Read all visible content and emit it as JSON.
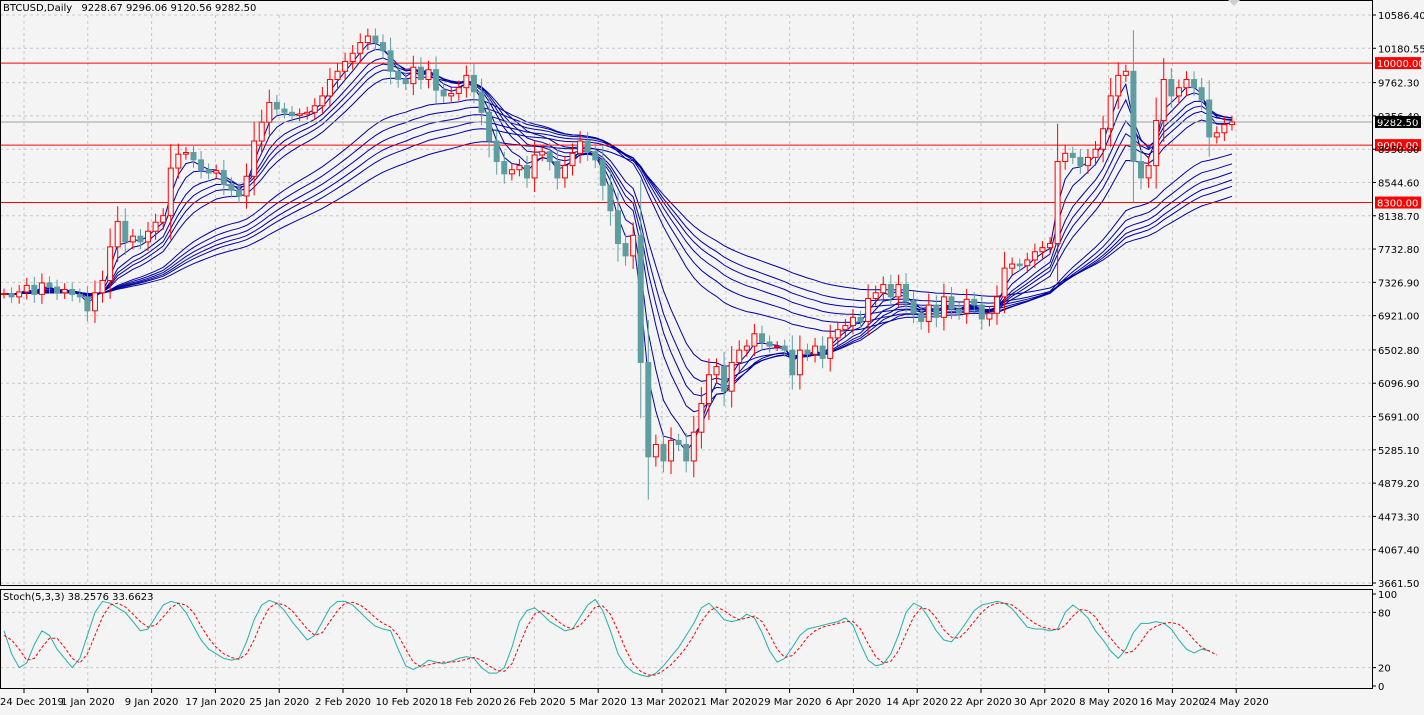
{
  "header": {
    "symbol": "BTCUSD,Daily",
    "ohlc": "9228.67 9296.06 9120.56 9282.50"
  },
  "indicator": {
    "label": "Stoch(5,3,3) 38.2576 33.6623"
  },
  "chart_data": [
    {
      "type": "candlestick",
      "title": "BTCUSD,Daily",
      "ylim": [
        3661.5,
        10586.4
      ],
      "y_ticks": [
        "10586.40",
        "10180.55",
        "9762.30",
        "9356.40",
        "8950.00",
        "8544.60",
        "8138.70",
        "7732.80",
        "7326.90",
        "6921.00",
        "6502.80",
        "6096.90",
        "5691.00",
        "5285.10",
        "4879.20",
        "4473.30",
        "4067.40",
        "3661.50"
      ],
      "x_ticks": [
        "24 Dec 2019",
        "1 Jan 2020",
        "9 Jan 2020",
        "17 Jan 2020",
        "25 Jan 2020",
        "2 Feb 2020",
        "10 Feb 2020",
        "18 Feb 2020",
        "26 Feb 2020",
        "5 Mar 2020",
        "13 Mar 2020",
        "21 Mar 2020",
        "29 Mar 2020",
        "6 Apr 2020",
        "14 Apr 2020",
        "22 Apr 2020",
        "30 Apr 2020",
        "8 May 2020",
        "16 May 2020",
        "24 May 2020"
      ],
      "horizontal_levels": [
        {
          "value": 10000.0,
          "label": "10000.00",
          "color": "#ff0000"
        },
        {
          "value": 9000.0,
          "label": "9000.00",
          "color": "#ff0000"
        },
        {
          "value": 8300.0,
          "label": "8300.00",
          "color": "#ff0000"
        }
      ],
      "current_price": {
        "value": 9282.5,
        "label": "9282.50"
      },
      "colors": {
        "bull": "#ff0000",
        "bear": "#5f9ea0",
        "ma": "#0000a0",
        "grid": "#c8c8c8"
      },
      "closes": [
        7190,
        7150,
        7210,
        7290,
        7180,
        7320,
        7270,
        7200,
        7240,
        7180,
        7150,
        6980,
        7200,
        7350,
        7760,
        8070,
        7820,
        7890,
        7820,
        7950,
        8060,
        8140,
        8720,
        8890,
        8910,
        8820,
        8700,
        8660,
        8690,
        8520,
        8450,
        8380,
        8620,
        9050,
        9280,
        9520,
        9440,
        9400,
        9360,
        9380,
        9400,
        9480,
        9600,
        9800,
        9900,
        10020,
        10120,
        10250,
        10330,
        10250,
        10150,
        9900,
        9800,
        9750,
        9950,
        9800,
        9920,
        9670,
        9600,
        9630,
        9700,
        9850,
        9650,
        9400,
        9050,
        8800,
        8650,
        8700,
        8750,
        8600,
        8880,
        8920,
        8800,
        8600,
        8750,
        8900,
        9050,
        8920,
        8820,
        8510,
        8200,
        7800,
        7650,
        7900,
        6350,
        5200,
        5350,
        5150,
        5400,
        5350,
        5150,
        5500,
        5850,
        6200,
        6300,
        6000,
        6350,
        6500,
        6550,
        6700,
        6600,
        6550,
        6550,
        6500,
        6200,
        6500,
        6450,
        6550,
        6400,
        6650,
        6750,
        6800,
        6900,
        6850,
        7130,
        7200,
        7300,
        7150,
        7300,
        7100,
        6950,
        6850,
        7050,
        6900,
        7150,
        7000,
        6950,
        7120,
        7050,
        6880,
        6950,
        7150,
        7500,
        7550,
        7530,
        7600,
        7700,
        7750,
        7800,
        8800,
        8900,
        8850,
        8750,
        8850,
        8950,
        9200,
        9600,
        9850,
        9900,
        8800,
        8600,
        8750,
        9300,
        9800,
        9600,
        9700,
        9800,
        9700,
        9550,
        9100,
        9150,
        9250,
        9282.5
      ],
      "stochastic": {
        "label": "Stoch(5,3,3) 38.2576 33.6623",
        "ylim": [
          0,
          100
        ],
        "y_ticks": [
          "100",
          "80",
          "20",
          "0"
        ],
        "main": [
          60,
          35,
          20,
          25,
          45,
          60,
          55,
          40,
          30,
          20,
          30,
          55,
          80,
          92,
          90,
          85,
          80,
          70,
          60,
          62,
          75,
          88,
          92,
          90,
          80,
          65,
          50,
          40,
          35,
          30,
          28,
          30,
          48,
          72,
          88,
          93,
          90,
          82,
          70,
          60,
          50,
          55,
          70,
          85,
          92,
          92,
          88,
          80,
          72,
          65,
          62,
          60,
          40,
          22,
          18,
          22,
          28,
          26,
          24,
          27,
          30,
          32,
          30,
          20,
          14,
          14,
          20,
          42,
          70,
          82,
          85,
          78,
          70,
          65,
          60,
          62,
          75,
          88,
          94,
          82,
          60,
          35,
          22,
          15,
          12,
          10,
          14,
          22,
          32,
          42,
          55,
          68,
          85,
          90,
          82,
          72,
          70,
          72,
          78,
          74,
          58,
          38,
          26,
          30,
          42,
          55,
          62,
          64,
          66,
          68,
          70,
          74,
          66,
          46,
          28,
          22,
          24,
          35,
          55,
          80,
          90,
          86,
          74,
          60,
          50,
          48,
          58,
          70,
          82,
          88,
          90,
          92,
          90,
          84,
          74,
          64,
          62,
          62,
          60,
          62,
          80,
          88,
          82,
          74,
          60,
          50,
          38,
          30,
          40,
          58,
          68,
          68,
          70,
          68,
          62,
          50,
          40,
          36,
          40,
          38.26
        ],
        "signal": [
          55,
          50,
          40,
          28,
          30,
          42,
          52,
          52,
          42,
          30,
          25,
          35,
          55,
          75,
          88,
          90,
          86,
          78,
          70,
          64,
          66,
          75,
          85,
          90,
          88,
          80,
          65,
          52,
          42,
          35,
          31,
          29,
          35,
          50,
          70,
          85,
          90,
          88,
          82,
          72,
          62,
          55,
          58,
          70,
          82,
          90,
          91,
          88,
          82,
          74,
          68,
          64,
          55,
          40,
          26,
          21,
          23,
          25,
          26,
          26,
          27,
          29,
          31,
          28,
          22,
          17,
          16,
          24,
          44,
          64,
          78,
          82,
          78,
          71,
          65,
          62,
          66,
          75,
          86,
          87,
          78,
          60,
          40,
          24,
          16,
          12,
          12,
          17,
          23,
          32,
          42,
          55,
          70,
          81,
          86,
          82,
          76,
          72,
          74,
          76,
          70,
          56,
          40,
          31,
          33,
          42,
          53,
          60,
          64,
          66,
          68,
          70,
          70,
          62,
          46,
          32,
          25,
          27,
          38,
          57,
          75,
          85,
          83,
          74,
          61,
          53,
          52,
          60,
          70,
          80,
          87,
          90,
          90,
          88,
          82,
          74,
          68,
          64,
          62,
          61,
          66,
          76,
          83,
          82,
          75,
          62,
          52,
          42,
          36,
          38,
          48,
          60,
          65,
          68,
          69,
          67,
          60,
          50,
          42,
          38,
          33.66
        ]
      }
    }
  ]
}
